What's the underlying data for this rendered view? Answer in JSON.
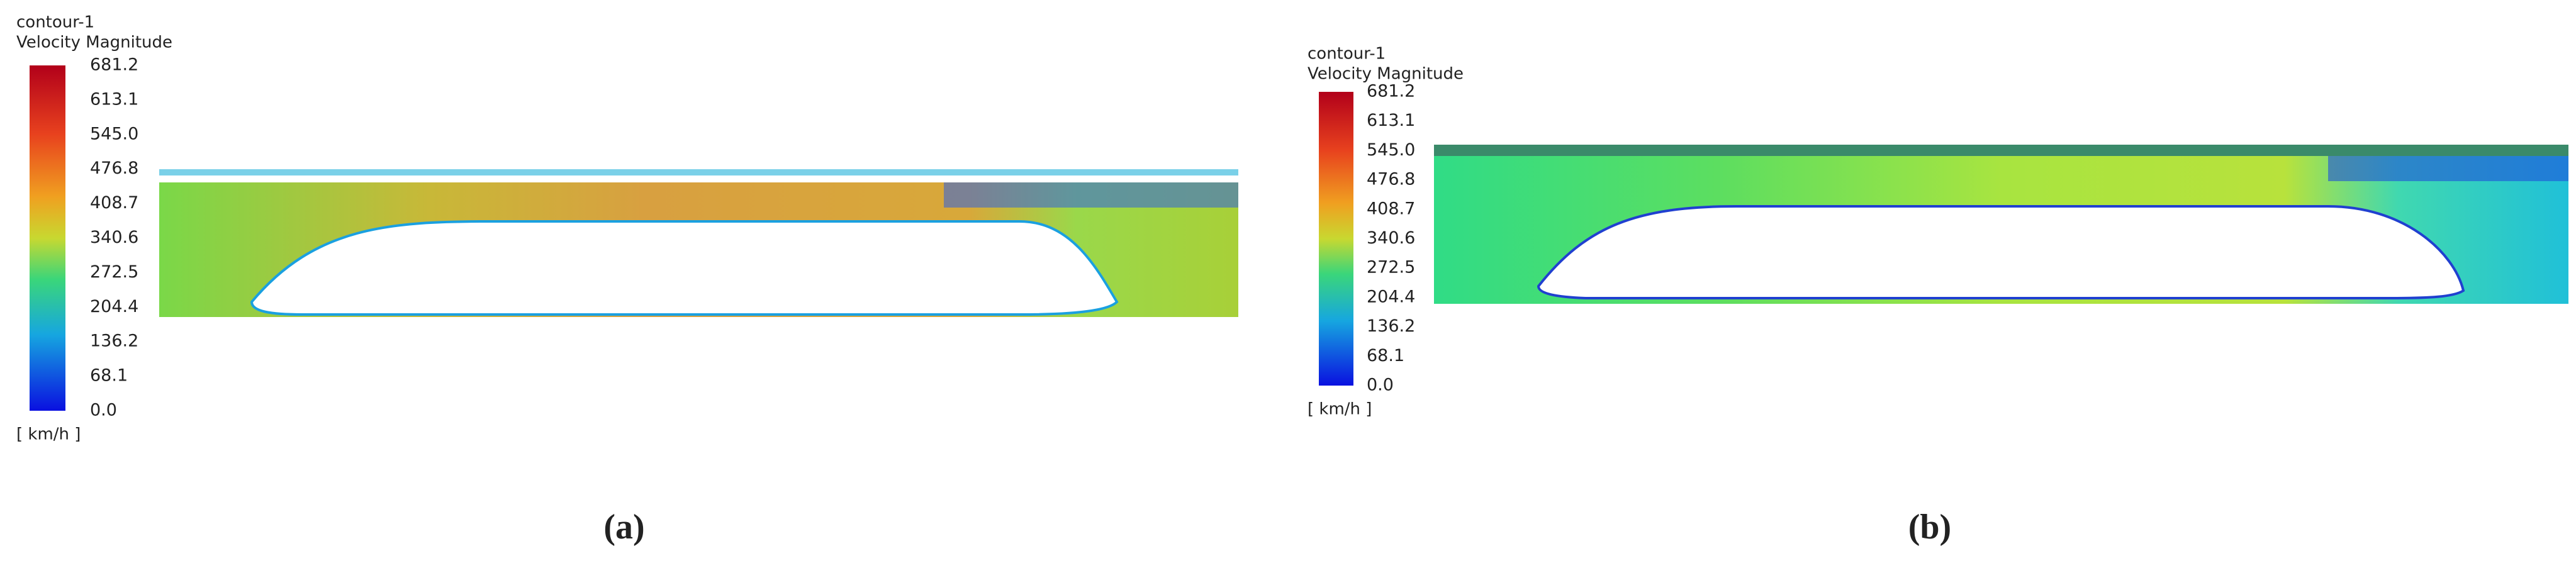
{
  "panels": [
    {
      "legend": {
        "title": "contour-1",
        "variable": "Velocity Magnitude",
        "ticks": [
          "681.2",
          "613.1",
          "545.0",
          "476.8",
          "408.7",
          "340.6",
          "272.5",
          "204.4",
          "136.2",
          "68.1",
          "0.0"
        ],
        "unit": "[ km/h ]"
      },
      "caption": "(a)"
    },
    {
      "legend": {
        "title": "contour-1",
        "variable": "Velocity Magnitude",
        "ticks": [
          "681.2",
          "613.1",
          "545.0",
          "476.8",
          "408.7",
          "340.6",
          "272.5",
          "204.4",
          "136.2",
          "68.1",
          "0.0"
        ],
        "unit": "[ km/h ]"
      },
      "caption": "(b)"
    }
  ]
}
